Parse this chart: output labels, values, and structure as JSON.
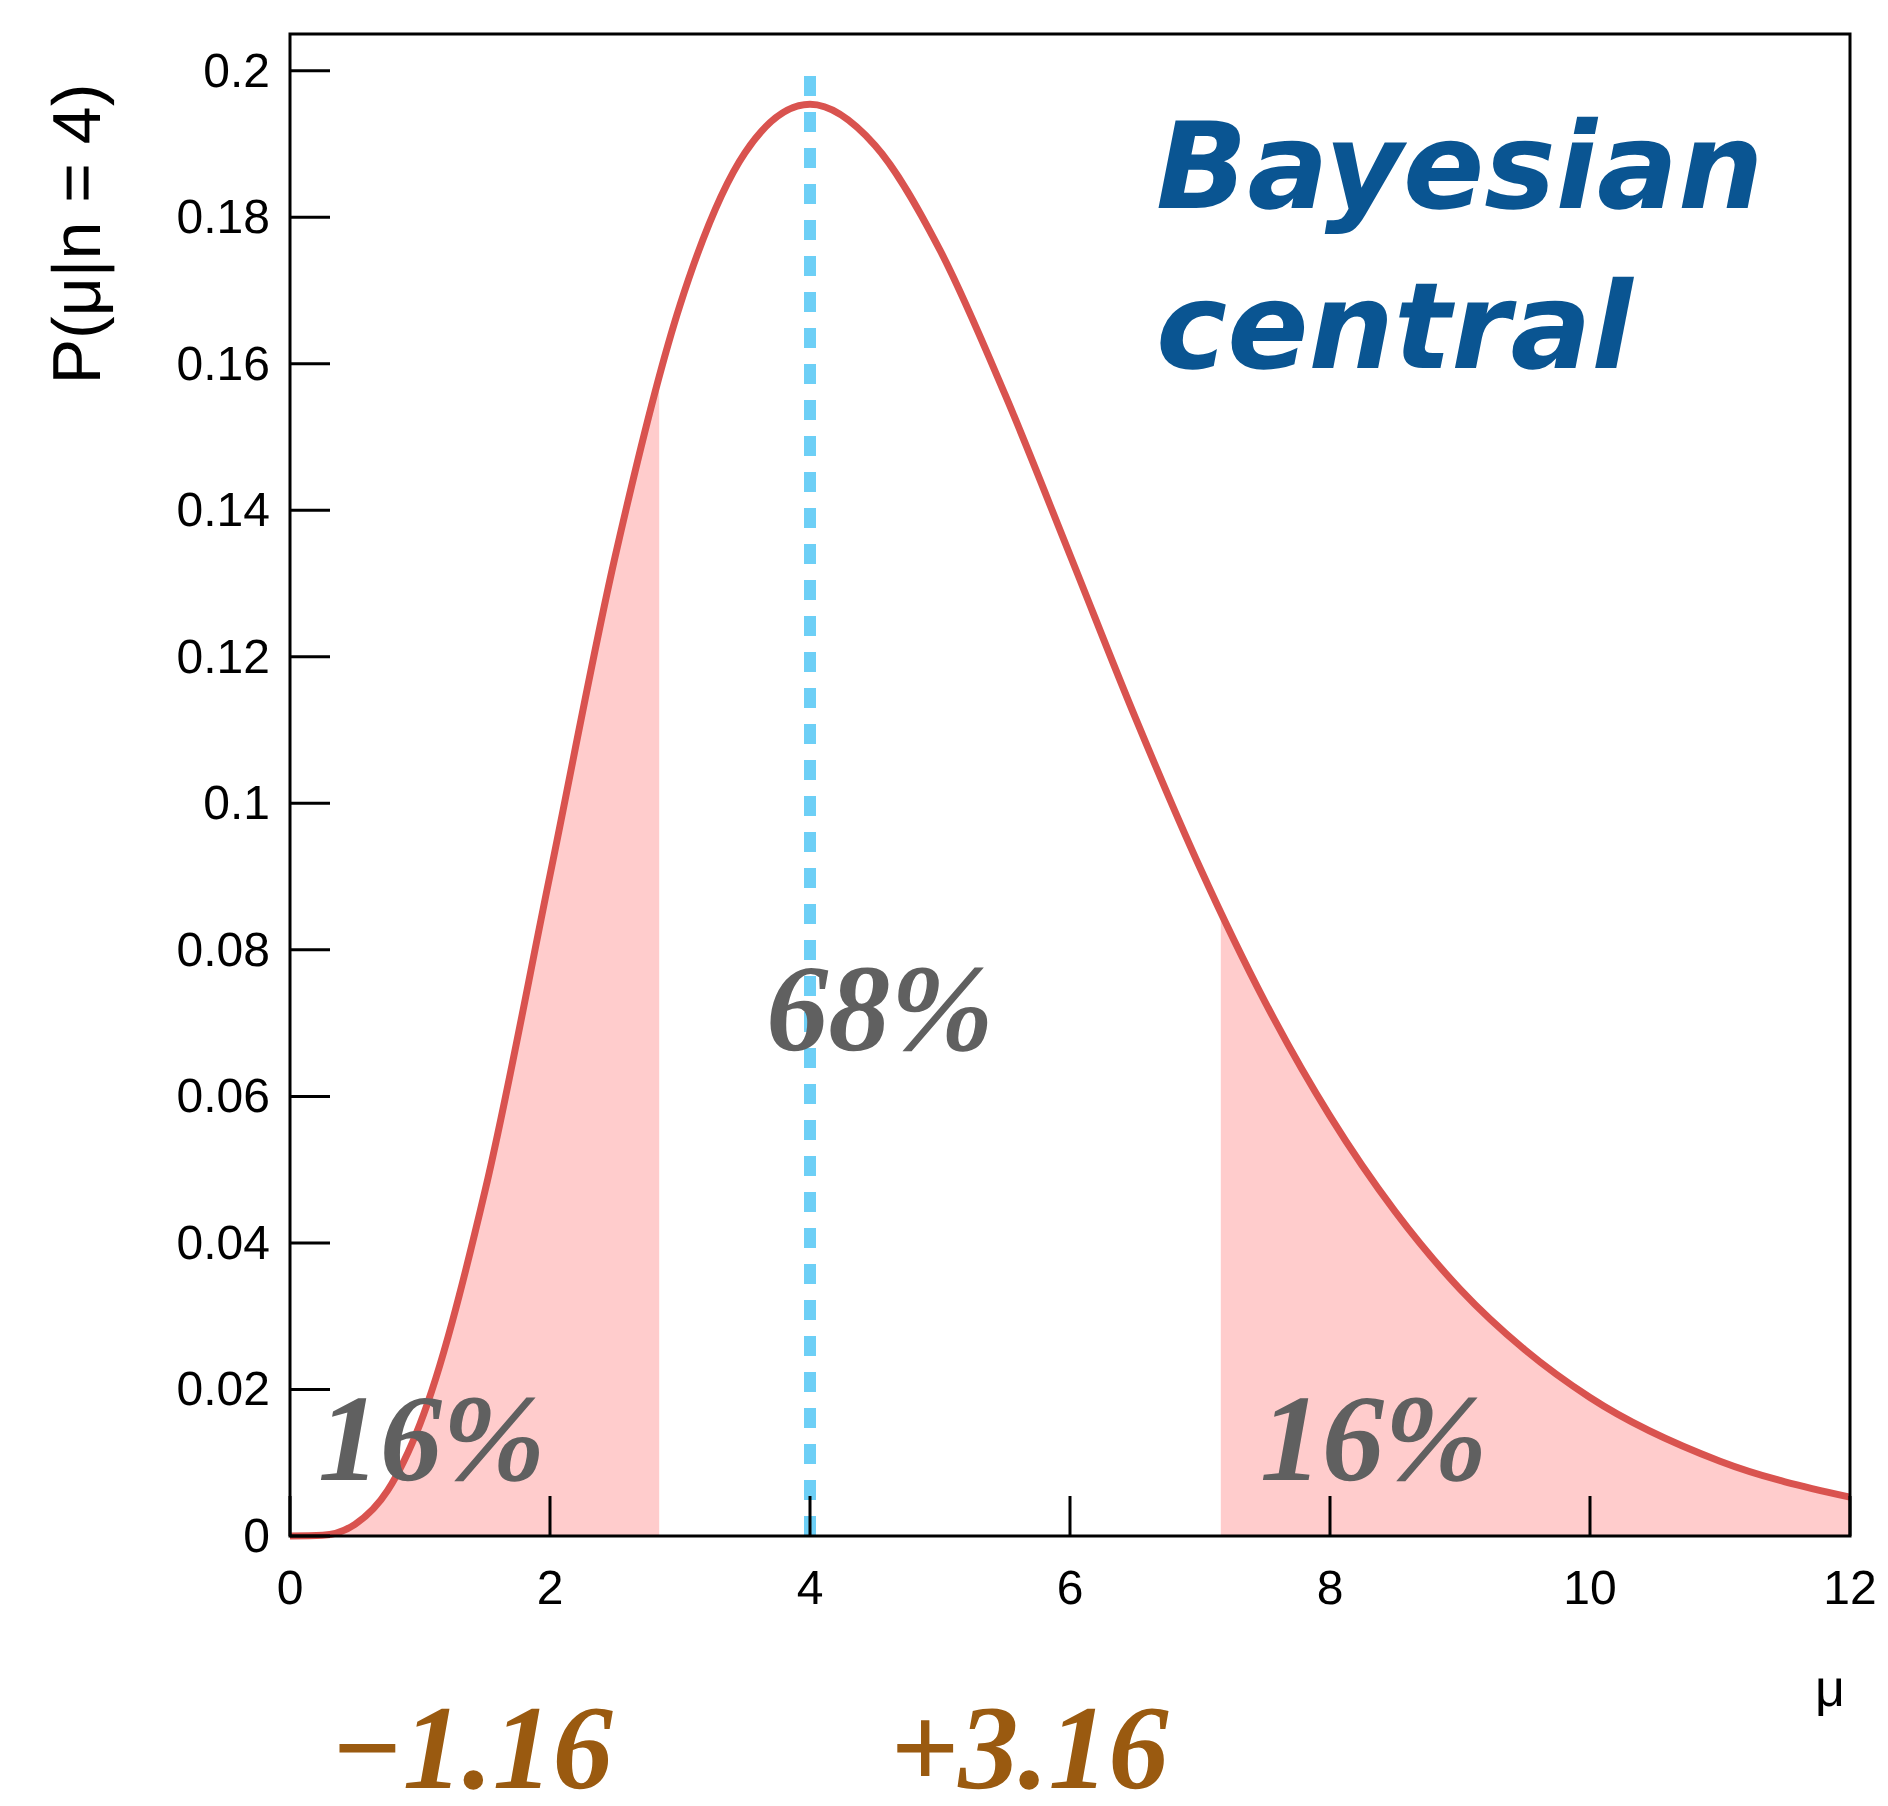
{
  "chart_data": {
    "type": "line",
    "xlabel": "μ",
    "ylabel": "P(μ|n = 4)",
    "x": [
      0,
      0.25,
      0.5,
      0.75,
      1,
      1.5,
      2,
      2.5,
      3,
      3.5,
      4,
      4.5,
      5,
      5.5,
      6,
      6.5,
      7,
      7.5,
      8,
      8.5,
      9,
      9.5,
      10,
      11,
      12
    ],
    "series": [
      {
        "type": "area",
        "color": "#ffcccc",
        "x": [
          0,
          0.25,
          0.5,
          0.75,
          1,
          1.5,
          2,
          2.5,
          2.84
        ],
        "values": [
          0,
          0.0001,
          0.0016,
          0.0062,
          0.0153,
          0.0471,
          0.0902,
          0.1336,
          0.1584
        ]
      },
      {
        "type": "area",
        "color": "#ffcccc",
        "x": [
          7.16,
          7.5,
          8,
          8.5,
          9,
          9.5,
          10,
          11,
          12
        ],
        "values": [
          0.0851,
          0.0729,
          0.0573,
          0.0443,
          0.0337,
          0.0254,
          0.0189,
          0.0102,
          0.0053
        ]
      },
      {
        "color": "#d9534f",
        "values": [
          0,
          0.0001,
          0.0016,
          0.0062,
          0.0153,
          0.0471,
          0.0902,
          0.1336,
          0.168,
          0.1888,
          0.1954,
          0.1898,
          0.1755,
          0.1558,
          0.1339,
          0.1118,
          0.0912,
          0.0729,
          0.0573,
          0.0443,
          0.0337,
          0.0254,
          0.0189,
          0.0102,
          0.0053
        ]
      }
    ],
    "xlim": [
      0,
      12
    ],
    "ylim": [
      0,
      0.205
    ],
    "xticks": [
      0,
      2,
      4,
      6,
      8,
      10,
      12
    ],
    "yticks": [
      0,
      0.02,
      0.04,
      0.06,
      0.08,
      0.1,
      0.12,
      0.14,
      0.16,
      0.18,
      0.2
    ],
    "grid": false,
    "line_style": "solid",
    "ref_lines": [
      {
        "axis": "x",
        "value": 4,
        "color": "#6dcff6",
        "line_style": "dashed"
      }
    ],
    "annotations": [
      "Bayesian\ncentral",
      "68%",
      "16%",
      "16%",
      "−1.16",
      "+3.16"
    ]
  }
}
